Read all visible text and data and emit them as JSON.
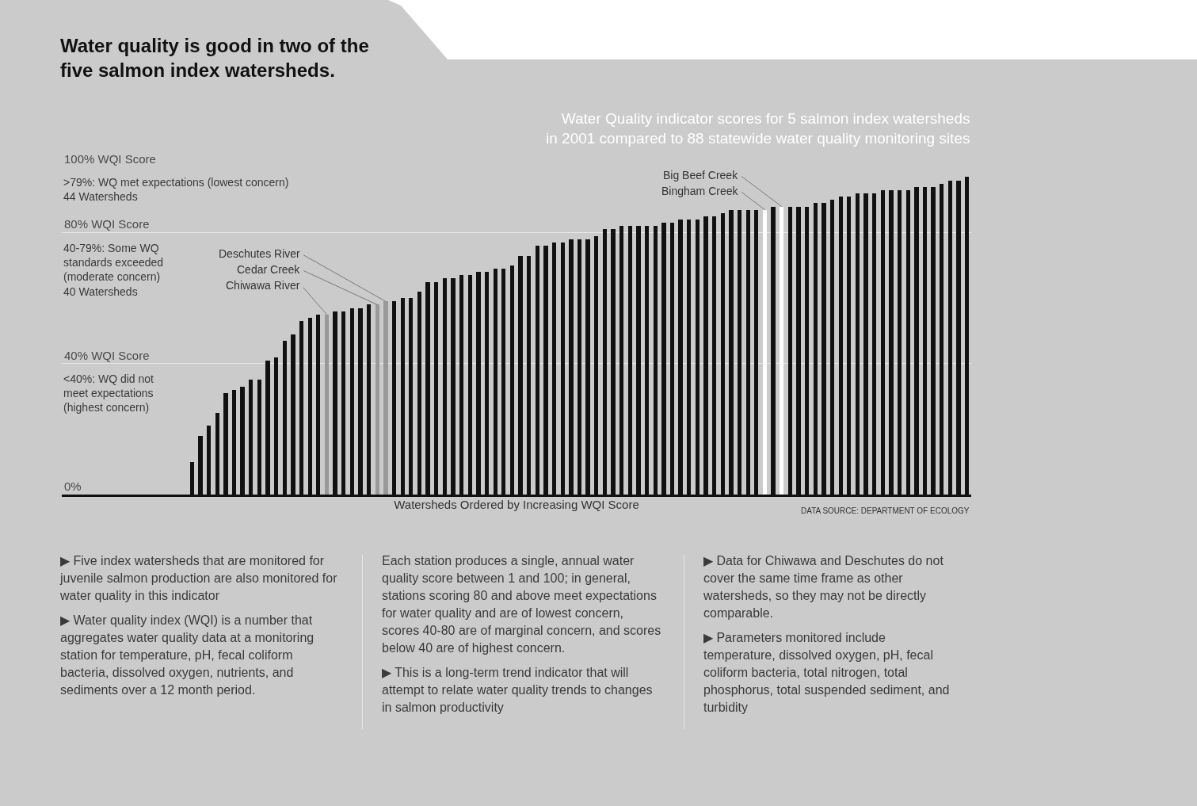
{
  "chart_data": {
    "type": "bar",
    "title": "Water quality is good in two of the\nfive salmon index watersheds.",
    "subtitle": "Water Quality indicator scores for 5 salmon index watersheds\nin 2001 compared to 88 statewide water quality monitoring sites",
    "xlabel": "Watersheds Ordered by Increasing WQI Score",
    "categories": [
      null,
      null,
      null,
      null,
      null,
      null,
      null,
      null,
      null,
      null,
      null,
      null,
      null,
      null,
      null,
      null,
      null,
      null,
      null,
      null,
      null,
      null,
      null,
      null,
      null,
      null,
      null,
      null,
      null,
      null,
      null,
      null,
      null,
      null,
      null,
      null,
      null,
      null,
      null,
      null,
      null,
      null,
      null,
      null,
      null,
      null,
      null,
      null,
      null,
      null,
      null,
      null,
      null,
      null,
      null,
      null,
      null,
      null,
      null,
      null,
      null,
      null,
      null,
      null,
      null,
      null,
      null,
      null,
      null,
      null,
      null,
      null,
      null,
      null,
      null,
      null,
      null,
      null,
      null,
      null,
      null,
      null,
      null,
      null,
      null,
      null,
      null,
      null,
      null,
      null,
      null,
      null,
      null
    ],
    "stacked": true,
    "series": [
      {
        "color": "#111111",
        "values": [
          10,
          18,
          21,
          25,
          31,
          32,
          33,
          35,
          35,
          41,
          42,
          47,
          49,
          53,
          54,
          55,
          null,
          56,
          56,
          57,
          57,
          58,
          null,
          null,
          59,
          60,
          60,
          62,
          65,
          65,
          66,
          66,
          67,
          67,
          68,
          68,
          69,
          69,
          70,
          73,
          73,
          76,
          76,
          77,
          77,
          78,
          78,
          78,
          79,
          81,
          81,
          82,
          82,
          82,
          82,
          82,
          83,
          83,
          84,
          84,
          84,
          85,
          85,
          86,
          87,
          87,
          87,
          87,
          null,
          88,
          null,
          88,
          88,
          88,
          89,
          89,
          90,
          91,
          91,
          92,
          92,
          92,
          93,
          93,
          93,
          93,
          94,
          94,
          94,
          95,
          96,
          96,
          97
        ]
      },
      {
        "name": "Deschutes River",
        "color": "#999999",
        "values": [
          null,
          null,
          null,
          null,
          null,
          null,
          null,
          null,
          null,
          null,
          null,
          null,
          null,
          null,
          null,
          null,
          null,
          null,
          null,
          null,
          null,
          null,
          null,
          59,
          null,
          null,
          null,
          null,
          null,
          null,
          null,
          null,
          null,
          null,
          null,
          null,
          null,
          null,
          null,
          null,
          null,
          null,
          null,
          null,
          null,
          null,
          null,
          null,
          null,
          null,
          null,
          null,
          null,
          null,
          null,
          null,
          null,
          null,
          null,
          null,
          null,
          null,
          null,
          null,
          null,
          null,
          null,
          null,
          null,
          null,
          null,
          null,
          null,
          null,
          null,
          null,
          null,
          null,
          null,
          null,
          null,
          null,
          null,
          null,
          null,
          null,
          null,
          null,
          null,
          null,
          null,
          null,
          null
        ]
      },
      {
        "name": "Cedar Creek",
        "color": "#999999",
        "values": [
          null,
          null,
          null,
          null,
          null,
          null,
          null,
          null,
          null,
          null,
          null,
          null,
          null,
          null,
          null,
          null,
          null,
          null,
          null,
          null,
          null,
          null,
          58,
          null,
          null,
          null,
          null,
          null,
          null,
          null,
          null,
          null,
          null,
          null,
          null,
          null,
          null,
          null,
          null,
          null,
          null,
          null,
          null,
          null,
          null,
          null,
          null,
          null,
          null,
          null,
          null,
          null,
          null,
          null,
          null,
          null,
          null,
          null,
          null,
          null,
          null,
          null,
          null,
          null,
          null,
          null,
          null,
          null,
          null,
          null,
          null,
          null,
          null,
          null,
          null,
          null,
          null,
          null,
          null,
          null,
          null,
          null,
          null,
          null,
          null,
          null,
          null,
          null,
          null,
          null,
          null,
          null,
          null
        ]
      },
      {
        "name": "Chiwawa River",
        "color": "#999999",
        "values": [
          null,
          null,
          null,
          null,
          null,
          null,
          null,
          null,
          null,
          null,
          null,
          null,
          null,
          null,
          null,
          null,
          55,
          null,
          null,
          null,
          null,
          null,
          null,
          null,
          null,
          null,
          null,
          null,
          null,
          null,
          null,
          null,
          null,
          null,
          null,
          null,
          null,
          null,
          null,
          null,
          null,
          null,
          null,
          null,
          null,
          null,
          null,
          null,
          null,
          null,
          null,
          null,
          null,
          null,
          null,
          null,
          null,
          null,
          null,
          null,
          null,
          null,
          null,
          null,
          null,
          null,
          null,
          null,
          null,
          null,
          null,
          null,
          null,
          null,
          null,
          null,
          null,
          null,
          null,
          null,
          null,
          null,
          null,
          null,
          null,
          null,
          null,
          null,
          null,
          null,
          null,
          null,
          null
        ]
      },
      {
        "name": "Big Beef Creek",
        "color": "#ffffff",
        "values": [
          null,
          null,
          null,
          null,
          null,
          null,
          null,
          null,
          null,
          null,
          null,
          null,
          null,
          null,
          null,
          null,
          null,
          null,
          null,
          null,
          null,
          null,
          null,
          null,
          null,
          null,
          null,
          null,
          null,
          null,
          null,
          null,
          null,
          null,
          null,
          null,
          null,
          null,
          null,
          null,
          null,
          null,
          null,
          null,
          null,
          null,
          null,
          null,
          null,
          null,
          null,
          null,
          null,
          null,
          null,
          null,
          null,
          null,
          null,
          null,
          null,
          null,
          null,
          null,
          null,
          null,
          null,
          null,
          null,
          null,
          88,
          null,
          null,
          null,
          null,
          null,
          null,
          null,
          null,
          null,
          null,
          null,
          null,
          null,
          null,
          null,
          null,
          null,
          null,
          null,
          null,
          null,
          null
        ]
      },
      {
        "name": "Bingham Creek",
        "color": "#ffffff",
        "values": [
          null,
          null,
          null,
          null,
          null,
          null,
          null,
          null,
          null,
          null,
          null,
          null,
          null,
          null,
          null,
          null,
          null,
          null,
          null,
          null,
          null,
          null,
          null,
          null,
          null,
          null,
          null,
          null,
          null,
          null,
          null,
          null,
          null,
          null,
          null,
          null,
          null,
          null,
          null,
          null,
          null,
          null,
          null,
          null,
          null,
          null,
          null,
          null,
          null,
          null,
          null,
          null,
          null,
          null,
          null,
          null,
          null,
          null,
          null,
          null,
          null,
          null,
          null,
          null,
          null,
          null,
          null,
          null,
          87,
          null,
          null,
          null,
          null,
          null,
          null,
          null,
          null,
          null,
          null,
          null,
          null,
          null,
          null,
          null,
          null,
          null,
          null,
          null,
          null,
          null,
          null,
          null,
          null
        ]
      }
    ],
    "ylim": [
      0,
      100
    ],
    "yticks": [
      {
        "value": 0,
        "label": "0%"
      },
      {
        "value": 40,
        "label": "40% WQI Score"
      },
      {
        "value": 80,
        "label": "80% WQI Score"
      },
      {
        "value": 100,
        "label": "100% WQI Score"
      }
    ],
    "grid": "y",
    "tick_labels": "y",
    "annotations": [
      ">79%: WQ met expectations (lowest concern)\n44 Watersheds",
      "40-79%: Some WQ\nstandards exceeded\n(moderate concern)\n40 Watersheds",
      "<40%: WQ did not\nmeet expectations\n(highest concern)",
      "DATA SOURCE: DEPARTMENT OF ECOLOGY",
      "▶ Five index watersheds that are monitored for juvenile salmon production are also monitored for water quality in this indicator\n▶ Water quality index (WQI) is a number that aggregates water quality data at a monitoring station for temperature, pH, fecal coliform bacteria, dissolved oxygen, nutrients, and sediments over a 12 month period.",
      "Each station produces a single, annual water quality score between 1 and 100; in general, stations scoring 80 and above meet expectations for water quality and are of lowest concern, scores 40-80 are of marginal concern, and scores below 40 are of highest concern.\n▶ This is a long-term trend indicator that will attempt to relate water quality trends to changes in salmon productivity",
      "▶ Data for Chiwawa and Deschutes do not cover the same time frame as other watersheds, so they may not be directly comparable.\n▶ Parameters monitored include temperature, dissolved oxygen, pH, fecal coliform bacteria, total nitrogen, total phosphorus, total suspended sediment, and turbidity"
    ]
  }
}
